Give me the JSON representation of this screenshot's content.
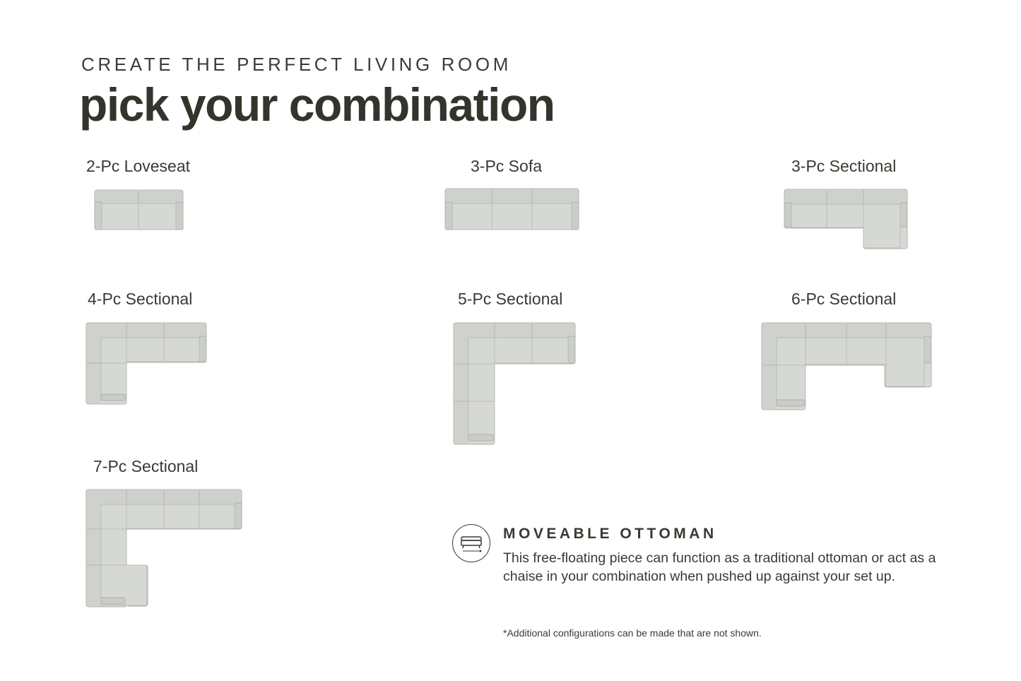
{
  "header": {
    "eyebrow": "CREATE THE PERFECT LIVING ROOM",
    "title": "pick your combination"
  },
  "configurations": [
    {
      "label": "2-Pc Loveseat",
      "icon": "loveseat-icon"
    },
    {
      "label": "3-Pc Sofa",
      "icon": "sofa-icon"
    },
    {
      "label": "3-Pc Sectional",
      "icon": "sectional-chaise-icon"
    },
    {
      "label": "4-Pc Sectional",
      "icon": "l-sectional-icon"
    },
    {
      "label": "5-Pc Sectional",
      "icon": "l-sectional-icon"
    },
    {
      "label": "6-Pc Sectional",
      "icon": "u-sectional-icon"
    },
    {
      "label": "7-Pc Sectional",
      "icon": "l-sectional-chaise-icon"
    }
  ],
  "feature": {
    "icon": "ottoman-icon",
    "title": "MOVEABLE OTTOMAN",
    "description": "This free-floating piece can function as a traditional ottoman or act as a chaise in your combination when pushed up against your set up."
  },
  "footnote": "*Additional configurations can be made that are not shown.",
  "colors": {
    "text": "#3a3a33",
    "upholstery": "#d6d8d4",
    "background": "#ffffff"
  }
}
